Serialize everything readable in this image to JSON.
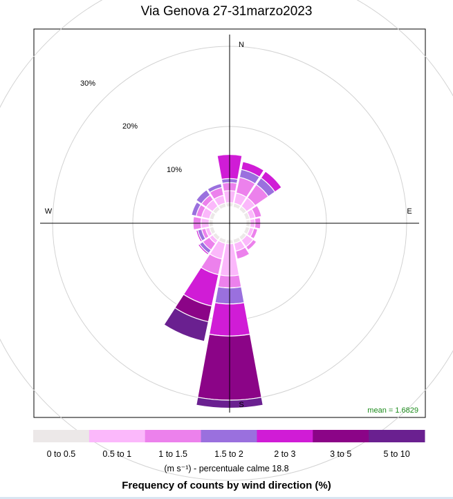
{
  "chart_data": {
    "type": "windrose",
    "title": "Via Genova 27-31marzo2023",
    "directions": [
      "N",
      "NNE",
      "NE",
      "ENE",
      "E",
      "ESE",
      "SE",
      "SSE",
      "S",
      "SSW",
      "SW",
      "WSW",
      "W",
      "WNW",
      "NW",
      "NNW"
    ],
    "compass_labels": {
      "N": "N",
      "E": "E",
      "S": "S",
      "W": "W"
    },
    "radial_max": 30,
    "radial_ticks": [
      10,
      20,
      30
    ],
    "radial_tick_labels": [
      "10%",
      "20%",
      "30%"
    ],
    "calm_percent": 18.8,
    "mean_label": "mean = 1.6829",
    "bins": [
      {
        "label": "0 to 0.5",
        "color": "#ece8e8"
      },
      {
        "label": "0.5 to 1",
        "color": "#fbb8fb"
      },
      {
        "label": "1 to 1.5",
        "color": "#ec81ec"
      },
      {
        "label": "1.5 to 2",
        "color": "#9a70de"
      },
      {
        "label": "2 to 3",
        "color": "#d01cd6"
      },
      {
        "label": "3 to 5",
        "color": "#8b0487"
      },
      {
        "label": "5 to 10",
        "color": "#6a2090"
      }
    ],
    "cumulative_percent": [
      [
        0.5,
        2.0,
        3.0,
        3.5,
        6.5,
        6.5,
        6.5
      ],
      [
        0.5,
        1.8,
        3.8,
        4.8,
        5.8,
        5.8,
        5.8
      ],
      [
        0.5,
        1.8,
        3.8,
        4.8,
        5.8,
        5.8,
        5.8
      ],
      [
        0.5,
        1.2,
        2.0,
        2.0,
        2.0,
        2.0,
        2.0
      ],
      [
        0.5,
        1.1,
        1.8,
        1.8,
        1.8,
        1.8,
        1.8
      ],
      [
        0.5,
        1.0,
        1.5,
        1.5,
        1.5,
        1.5,
        1.5
      ],
      [
        0.5,
        1.5,
        2.0,
        2.0,
        2.0,
        2.0,
        2.0
      ],
      [
        0.5,
        1.5,
        2.5,
        2.5,
        2.5,
        2.5,
        2.5
      ],
      [
        0.5,
        4.5,
        6.0,
        8.0,
        12.0,
        20.0,
        21.0
      ],
      [
        0.5,
        2.5,
        4.5,
        4.5,
        8.5,
        10.5,
        13.0
      ],
      [
        0.5,
        1.0,
        2.0,
        2.5,
        2.7,
        2.7,
        2.7
      ],
      [
        0.5,
        1.0,
        1.5,
        2.0,
        2.2,
        2.2,
        2.2
      ],
      [
        0.5,
        1.5,
        2.5,
        2.5,
        2.6,
        2.6,
        2.6
      ],
      [
        0.5,
        1.5,
        2.2,
        2.8,
        2.8,
        2.8,
        2.8
      ],
      [
        0.5,
        1.5,
        2.2,
        3.0,
        3.0,
        3.0,
        3.0
      ],
      [
        0.5,
        1.5,
        2.5,
        3.0,
        3.0,
        3.0,
        3.0
      ]
    ],
    "legend": {
      "units_label": "(m s⁻¹)   -   percentuale calme 18.8",
      "caption": "Frequency of counts by wind direction (%)"
    },
    "grid": true
  }
}
